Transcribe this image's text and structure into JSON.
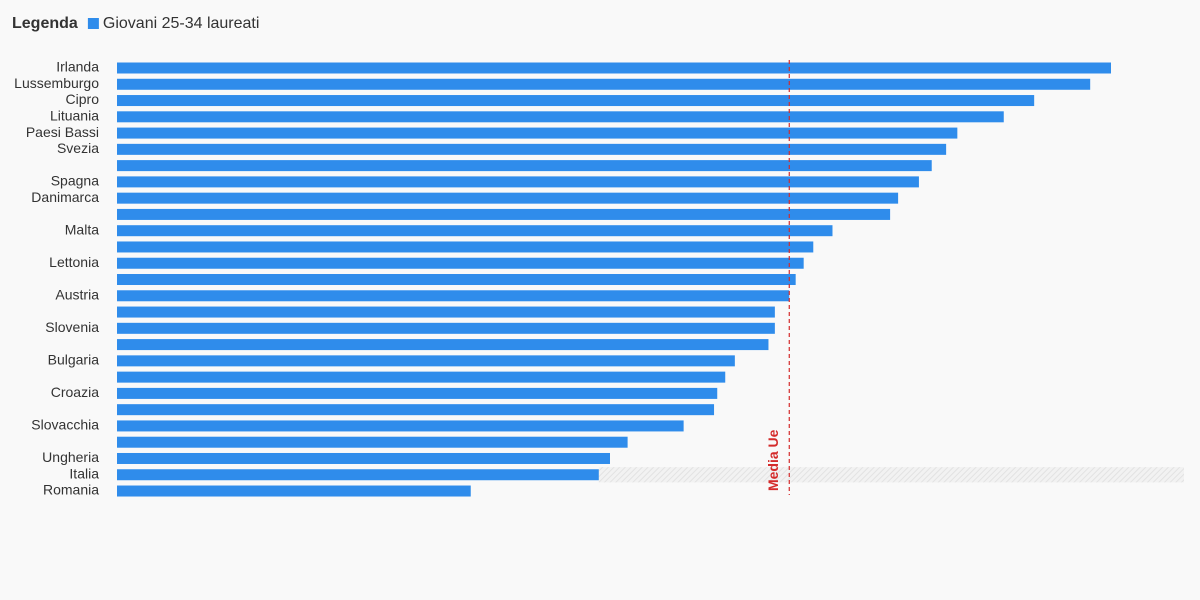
{
  "chart_data": {
    "type": "bar",
    "orientation": "horizontal",
    "legend_title": "Legenda",
    "categories": [
      "Irlanda",
      "Lussemburgo",
      "Cipro",
      "Lituania",
      "Paesi Bassi",
      "Svezia",
      null,
      "Spagna",
      "Danimarca",
      null,
      "Malta",
      null,
      "Lettonia",
      null,
      "Austria",
      null,
      "Slovenia",
      null,
      "Bulgaria",
      null,
      "Croazia",
      null,
      "Slovacchia",
      null,
      "Ungheria",
      "Italia",
      "Romania"
    ],
    "series": [
      {
        "name": "Giovani 25-34 laureati",
        "color": "#2f8ceb",
        "values": [
          62.1,
          60.8,
          57.3,
          55.4,
          52.5,
          51.8,
          50.9,
          50.1,
          48.8,
          48.3,
          44.7,
          43.5,
          42.9,
          42.4,
          42.0,
          41.1,
          41.1,
          40.7,
          38.6,
          38.0,
          37.5,
          37.3,
          35.4,
          31.9,
          30.8,
          30.1,
          22.1
        ]
      }
    ],
    "reference_line": {
      "label": "Media Ue",
      "value": 42.0,
      "color": "#d42b2b"
    },
    "highlight": "Italia"
  }
}
